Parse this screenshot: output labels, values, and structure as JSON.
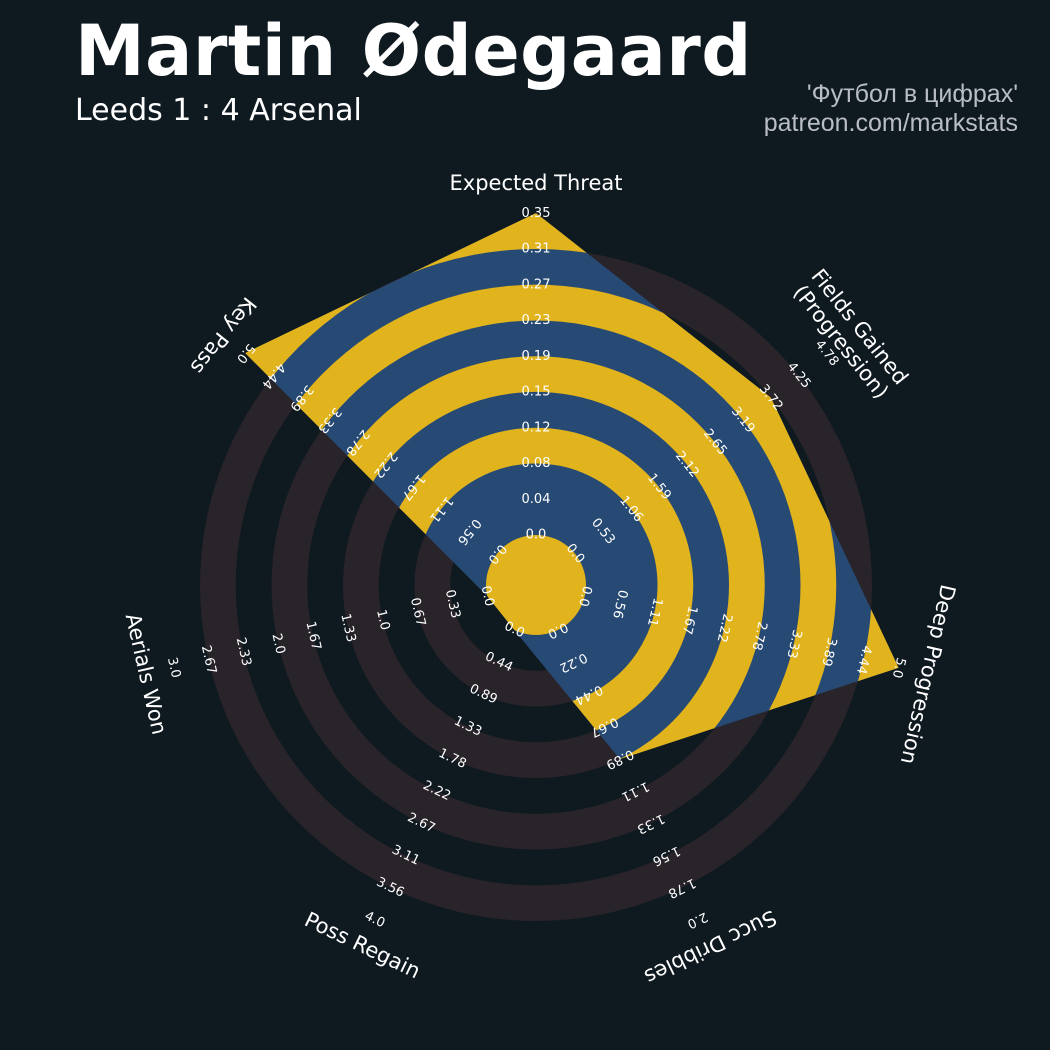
{
  "header": {
    "title": "Martin Ødegaard",
    "subtitle": "Leeds 1 : 4 Arsenal",
    "credit_line1": "'Футбол в цифрах'",
    "credit_line2": "patreon.com/markstats"
  },
  "chart_data": {
    "type": "radar",
    "title": "Martin Ødegaard",
    "subtitle": "Leeds 1 : 4 Arsenal",
    "grid": "alternating concentric rings",
    "colors": {
      "background": "#0f1920",
      "ring": "#29232a",
      "player_fill": "#274a75",
      "player_ring": "#e1b31c",
      "text": "#ffffff",
      "credit": "#b9bec4"
    },
    "axes": [
      {
        "label": "Expected Threat",
        "label_lines": [
          "Expected Threat"
        ],
        "min": 0.0,
        "max": 0.35,
        "value": 0.35,
        "ticks": [
          "0.0",
          "0.04",
          "0.08",
          "0.12",
          "0.15",
          "0.19",
          "0.23",
          "0.27",
          "0.31",
          "0.35"
        ]
      },
      {
        "label": "Fields Gained (Progression)",
        "label_lines": [
          "Fields Gained",
          "(Progression)"
        ],
        "min": 0.0,
        "max": 4.78,
        "value": 3.72,
        "ticks": [
          "0.0",
          "0.53",
          "1.06",
          "1.59",
          "2.12",
          "2.65",
          "3.19",
          "3.72",
          "4.25",
          "4.78"
        ]
      },
      {
        "label": "Deep Progression",
        "label_lines": [
          "Deep Progression"
        ],
        "min": 0.0,
        "max": 5.0,
        "value": 5.0,
        "ticks": [
          "0.0",
          "0.56",
          "1.11",
          "1.67",
          "2.22",
          "2.78",
          "3.33",
          "3.89",
          "4.44",
          "5.0"
        ]
      },
      {
        "label": "Succ Dribbles",
        "label_lines": [
          "Succ Dribbles"
        ],
        "min": 0.0,
        "max": 2.0,
        "value": 0.89,
        "ticks": [
          "0.0",
          "0.22",
          "0.44",
          "0.67",
          "0.89",
          "1.11",
          "1.33",
          "1.56",
          "1.78",
          "2.0"
        ]
      },
      {
        "label": "Poss Regain",
        "label_lines": [
          "Poss Regain"
        ],
        "min": 0.0,
        "max": 4.0,
        "value": 0.0,
        "ticks": [
          "0.0",
          "0.44",
          "0.89",
          "1.33",
          "1.78",
          "2.22",
          "2.67",
          "3.11",
          "3.56",
          "4.0"
        ]
      },
      {
        "label": "Aerials Won",
        "label_lines": [
          "Aerials Won"
        ],
        "min": 0.0,
        "max": 3.0,
        "value": 0.0,
        "ticks": [
          "0.0",
          "0.33",
          "0.67",
          "1.0",
          "1.33",
          "1.67",
          "2.0",
          "2.33",
          "2.67",
          "3.0"
        ]
      },
      {
        "label": "Key Pass",
        "label_lines": [
          "Key Pass"
        ],
        "min": 0.0,
        "max": 5.0,
        "value": 5.0,
        "ticks": [
          "0.0",
          "0.56",
          "1.11",
          "1.67",
          "2.22",
          "2.78",
          "3.33",
          "3.89",
          "4.44",
          "5.0"
        ]
      }
    ]
  }
}
